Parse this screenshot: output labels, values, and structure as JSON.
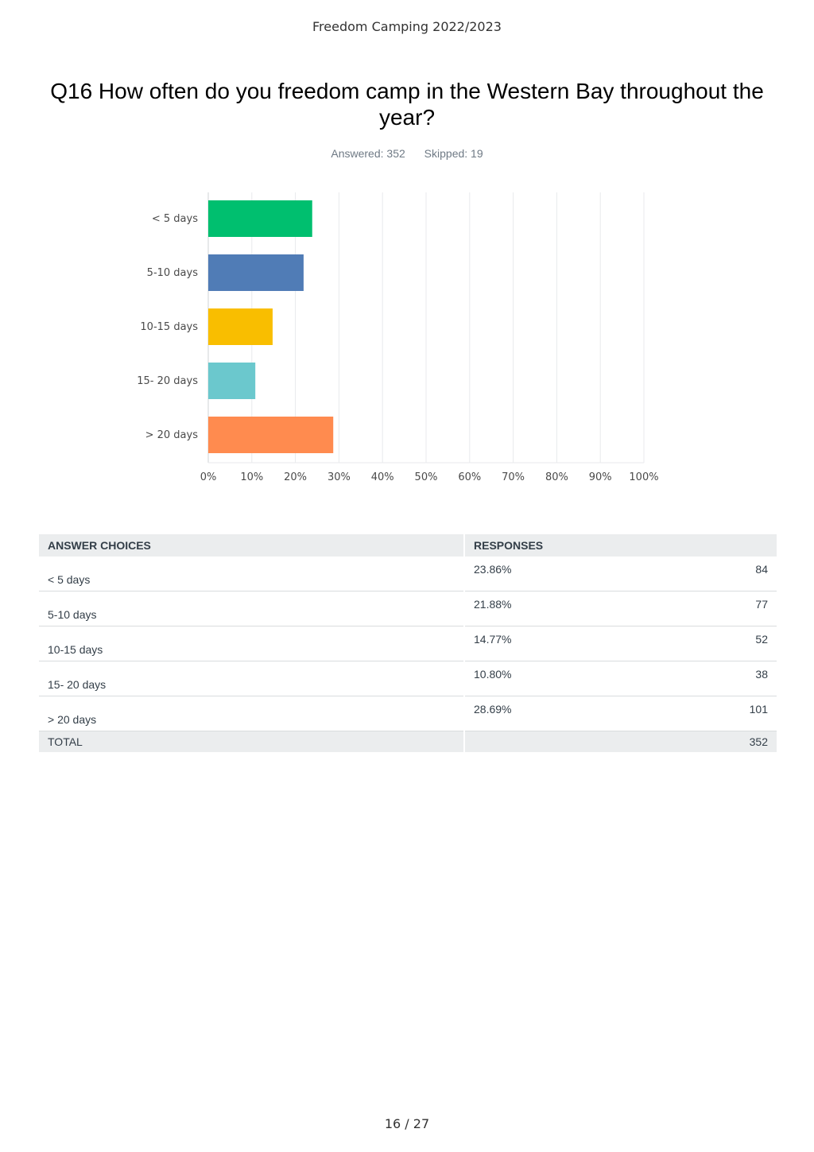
{
  "header": {
    "doc_title": "Freedom Camping 2022/2023"
  },
  "question": {
    "title": "Q16 How often do you freedom camp in the Western Bay throughout the year?",
    "answered": "Answered: 352",
    "skipped": "Skipped: 19"
  },
  "chart_data": {
    "type": "bar",
    "orientation": "horizontal",
    "categories": [
      "< 5 days",
      "5-10 days",
      "10-15 days",
      "15- 20 days",
      "> 20 days"
    ],
    "values": [
      23.86,
      21.88,
      14.77,
      10.8,
      28.69
    ],
    "colors": [
      "#00bf6f",
      "#507cb6",
      "#f9be00",
      "#6bc8cd",
      "#ff8b4f"
    ],
    "x_ticks": [
      "0%",
      "10%",
      "20%",
      "30%",
      "40%",
      "50%",
      "60%",
      "70%",
      "80%",
      "90%",
      "100%"
    ],
    "xlim": [
      0,
      100
    ],
    "grid": true
  },
  "table": {
    "headers": {
      "choices": "ANSWER CHOICES",
      "responses": "RESPONSES"
    },
    "rows": [
      {
        "choice": "< 5 days",
        "percent": "23.86%",
        "count": "84"
      },
      {
        "choice": "5-10 days",
        "percent": "21.88%",
        "count": "77"
      },
      {
        "choice": "10-15 days",
        "percent": "14.77%",
        "count": "52"
      },
      {
        "choice": "15- 20 days",
        "percent": "10.80%",
        "count": "38"
      },
      {
        "choice": "> 20 days",
        "percent": "28.69%",
        "count": "101"
      }
    ],
    "total": {
      "label": "TOTAL",
      "count": "352"
    }
  },
  "footer": {
    "page": "16 / 27"
  }
}
